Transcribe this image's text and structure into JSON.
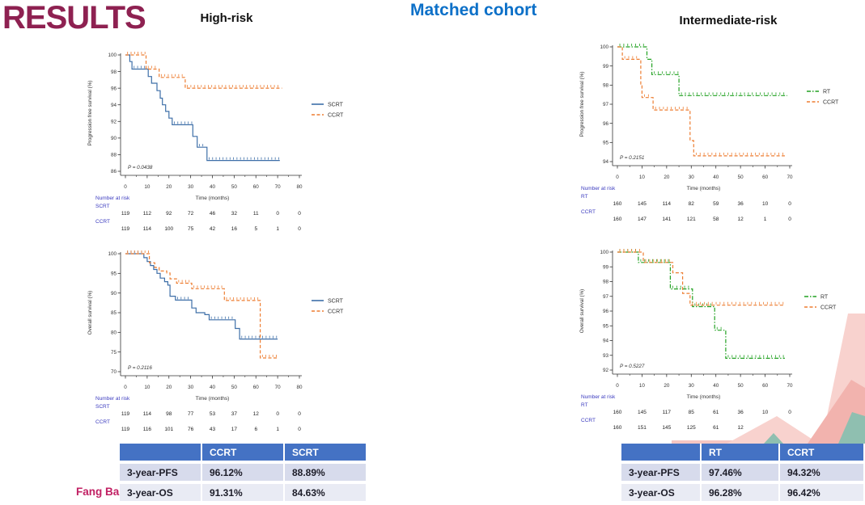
{
  "slide": {
    "title": "RESULTS",
    "subtitle": "Matched cohort",
    "left_heading": "High-risk",
    "right_heading": "Intermediate-risk",
    "footer": "Fang Bai"
  },
  "colors": {
    "title": "#8E2151",
    "subtitle": "#0C70C8",
    "footer": "#C12063",
    "scrt": "#3E6FA8",
    "ccrt": "#ED7D31",
    "rt": "#21A121",
    "risk_label": "#3A3ABF",
    "axis": "#333333",
    "table_header_bg": "#4472C4",
    "table_row1_bg": "#D7DBEC",
    "table_row2_bg": "#E9EBF4",
    "deco_pink_light": "#F8D2CE",
    "deco_pink_mid": "#F2B3AE",
    "deco_teal": "#8FBFB0"
  },
  "chart_data": [
    {
      "type": "line",
      "km_step": true,
      "title": "High-risk progression free survival",
      "ylabel": "Progression free survival (%)",
      "xlabel": "Time (months)",
      "xlim": [
        0,
        80
      ],
      "xticks": [
        0,
        10,
        20,
        30,
        40,
        50,
        60,
        70,
        80
      ],
      "ylim": [
        86,
        100
      ],
      "yticks": [
        86,
        88,
        90,
        92,
        94,
        96,
        98,
        100
      ],
      "pvalue": "P = 0.0438",
      "legend_position": "right",
      "grid": false,
      "series": [
        {
          "name": "SCRT",
          "color_key": "scrt",
          "style": "solid",
          "steps": [
            [
              0,
              100
            ],
            [
              2,
              100
            ],
            [
              2,
              99.2
            ],
            [
              3,
              99.2
            ],
            [
              3,
              98.3
            ],
            [
              10.5,
              98.3
            ],
            [
              10.5,
              97.4
            ],
            [
              12,
              97.4
            ],
            [
              12,
              96.6
            ],
            [
              14.5,
              96.6
            ],
            [
              14.5,
              95.7
            ],
            [
              16,
              95.7
            ],
            [
              16,
              94.8
            ],
            [
              17,
              94.8
            ],
            [
              17,
              94
            ],
            [
              18.5,
              94
            ],
            [
              18.5,
              93.2
            ],
            [
              20,
              93.2
            ],
            [
              20,
              92.4
            ],
            [
              21.5,
              92.4
            ],
            [
              21.5,
              91.6
            ],
            [
              31,
              91.6
            ],
            [
              31,
              90.2
            ],
            [
              33,
              90.2
            ],
            [
              33,
              88.9
            ],
            [
              37.5,
              88.9
            ],
            [
              37.5,
              87.3
            ],
            [
              71,
              87.3
            ]
          ]
        },
        {
          "name": "CCRT",
          "color_key": "ccrt",
          "style": "dashed",
          "steps": [
            [
              0,
              100
            ],
            [
              9.5,
              100
            ],
            [
              9.5,
              98.3
            ],
            [
              15.5,
              98.3
            ],
            [
              15.5,
              97.3
            ],
            [
              27.5,
              97.3
            ],
            [
              27.5,
              96
            ],
            [
              72,
              96
            ]
          ]
        }
      ],
      "risk_table": {
        "label": "Number at risk",
        "rows": [
          {
            "name": "SCRT",
            "values": [
              "119",
              "112",
              "92",
              "72",
              "46",
              "32",
              "11",
              "0",
              "0"
            ]
          },
          {
            "name": "CCRT",
            "values": [
              "119",
              "114",
              "100",
              "75",
              "42",
              "16",
              "5",
              "1",
              "0"
            ]
          }
        ]
      }
    },
    {
      "type": "line",
      "km_step": true,
      "title": "High-risk overall survival",
      "ylabel": "Overall survival (%)",
      "xlabel": "Time (months)",
      "xlim": [
        0,
        80
      ],
      "xticks": [
        0,
        10,
        20,
        30,
        40,
        50,
        60,
        70,
        80
      ],
      "ylim": [
        70,
        100
      ],
      "yticks": [
        70,
        75,
        80,
        85,
        90,
        95,
        100
      ],
      "pvalue": "P = 0.2116",
      "legend_position": "right",
      "grid": false,
      "series": [
        {
          "name": "SCRT",
          "color_key": "scrt",
          "style": "solid",
          "steps": [
            [
              0,
              100
            ],
            [
              8.5,
              100
            ],
            [
              8.5,
              99
            ],
            [
              10,
              99
            ],
            [
              10,
              98
            ],
            [
              11.5,
              98
            ],
            [
              11.5,
              97
            ],
            [
              13,
              97
            ],
            [
              13,
              96
            ],
            [
              14.5,
              96
            ],
            [
              14.5,
              95
            ],
            [
              16,
              95
            ],
            [
              16,
              93.8
            ],
            [
              18,
              93.8
            ],
            [
              18,
              92.9
            ],
            [
              19.5,
              92.9
            ],
            [
              19.5,
              92
            ],
            [
              20.5,
              92
            ],
            [
              20.5,
              89.2
            ],
            [
              23,
              89.2
            ],
            [
              23,
              88.2
            ],
            [
              30.5,
              88.2
            ],
            [
              30.5,
              86.2
            ],
            [
              32.5,
              86.2
            ],
            [
              32.5,
              85
            ],
            [
              36.5,
              85
            ],
            [
              36.5,
              84.5
            ],
            [
              38.5,
              84.5
            ],
            [
              38.5,
              83.2
            ],
            [
              50.5,
              83.2
            ],
            [
              50.5,
              81
            ],
            [
              52.5,
              81
            ],
            [
              52.5,
              78.3
            ],
            [
              70,
              78.3
            ]
          ]
        },
        {
          "name": "CCRT",
          "color_key": "ccrt",
          "style": "dashed",
          "steps": [
            [
              0,
              100
            ],
            [
              11,
              100
            ],
            [
              11,
              97.7
            ],
            [
              13.5,
              97.7
            ],
            [
              13.5,
              96.5
            ],
            [
              15.5,
              96.5
            ],
            [
              15.5,
              95.6
            ],
            [
              19,
              95.6
            ],
            [
              19,
              95.1
            ],
            [
              20.5,
              95.1
            ],
            [
              20.5,
              93.6
            ],
            [
              23.5,
              93.6
            ],
            [
              23.5,
              92.5
            ],
            [
              30.5,
              92.5
            ],
            [
              30.5,
              91.1
            ],
            [
              45.5,
              91.1
            ],
            [
              45.5,
              88.1
            ],
            [
              62,
              88.1
            ],
            [
              62,
              73.5
            ],
            [
              70,
              73.5
            ]
          ]
        }
      ],
      "risk_table": {
        "label": "Number at risk",
        "rows": [
          {
            "name": "SCRT",
            "values": [
              "119",
              "114",
              "98",
              "77",
              "53",
              "37",
              "12",
              "0",
              "0"
            ]
          },
          {
            "name": "CCRT",
            "values": [
              "119",
              "116",
              "101",
              "76",
              "43",
              "17",
              "6",
              "1",
              "0"
            ]
          }
        ]
      }
    },
    {
      "type": "line",
      "km_step": true,
      "title": "Intermediate-risk progression free survival",
      "ylabel": "Progression free survival (%)",
      "xlabel": "Time (months)",
      "xlim": [
        0,
        70
      ],
      "xticks": [
        0,
        10,
        20,
        30,
        40,
        50,
        60,
        70
      ],
      "ylim": [
        94,
        100
      ],
      "yticks": [
        94,
        95,
        96,
        97,
        98,
        99,
        100
      ],
      "pvalue": "P = 0.2151",
      "legend_position": "right",
      "grid": false,
      "series": [
        {
          "name": "RT",
          "color_key": "rt",
          "style": "dashdot",
          "steps": [
            [
              0,
              100
            ],
            [
              12,
              100
            ],
            [
              12,
              99.35
            ],
            [
              14,
              99.35
            ],
            [
              14,
              98.55
            ],
            [
              25,
              98.55
            ],
            [
              25,
              97.45
            ],
            [
              69,
              97.45
            ]
          ]
        },
        {
          "name": "CCRT",
          "color_key": "ccrt",
          "style": "dashed",
          "steps": [
            [
              0,
              100
            ],
            [
              2,
              100
            ],
            [
              2,
              99.35
            ],
            [
              9.5,
              99.35
            ],
            [
              9.5,
              98
            ],
            [
              10,
              98
            ],
            [
              10,
              97.35
            ],
            [
              14.5,
              97.35
            ],
            [
              14.5,
              96.7
            ],
            [
              29.5,
              96.7
            ],
            [
              29.5,
              95.1
            ],
            [
              31,
              95.1
            ],
            [
              31,
              94.3
            ],
            [
              68,
              94.3
            ]
          ]
        }
      ],
      "risk_table": {
        "label": "Number at risk",
        "rows": [
          {
            "name": "RT",
            "values": [
              "160",
              "145",
              "114",
              "82",
              "59",
              "36",
              "10",
              "0"
            ]
          },
          {
            "name": "CCRT",
            "values": [
              "160",
              "147",
              "141",
              "121",
              "58",
              "12",
              "1",
              "0"
            ]
          }
        ]
      }
    },
    {
      "type": "line",
      "km_step": true,
      "title": "Intermediate-risk overall survival",
      "ylabel": "Overall survival (%)",
      "xlabel": "Time (months)",
      "xlim": [
        0,
        70
      ],
      "xticks": [
        0,
        10,
        20,
        30,
        40,
        50,
        60,
        70
      ],
      "ylim": [
        92,
        100
      ],
      "yticks": [
        92,
        93,
        94,
        95,
        96,
        97,
        98,
        99,
        100
      ],
      "pvalue": "P = 0.5227",
      "legend_position": "right",
      "grid": false,
      "series": [
        {
          "name": "RT",
          "color_key": "rt",
          "style": "dashdot",
          "steps": [
            [
              0,
              100
            ],
            [
              8.5,
              100
            ],
            [
              8.5,
              99.3
            ],
            [
              21.5,
              99.3
            ],
            [
              21.5,
              97.5
            ],
            [
              30.5,
              97.5
            ],
            [
              30.5,
              96.3
            ],
            [
              39.5,
              96.3
            ],
            [
              39.5,
              94.7
            ],
            [
              44,
              94.7
            ],
            [
              44,
              92.8
            ],
            [
              68,
              92.8
            ]
          ]
        },
        {
          "name": "CCRT",
          "color_key": "ccrt",
          "style": "dashed",
          "steps": [
            [
              0,
              100
            ],
            [
              10.5,
              100
            ],
            [
              10.5,
              99.3
            ],
            [
              22.5,
              99.3
            ],
            [
              22.5,
              98.6
            ],
            [
              26.5,
              98.6
            ],
            [
              26.5,
              97.2
            ],
            [
              29.5,
              97.2
            ],
            [
              29.5,
              96.4
            ],
            [
              68,
              96.4
            ]
          ]
        }
      ],
      "risk_table": {
        "label": "Number at risk",
        "rows": [
          {
            "name": "RT",
            "values": [
              "160",
              "145",
              "117",
              "85",
              "61",
              "36",
              "10",
              "0"
            ]
          },
          {
            "name": "CCRT",
            "values": [
              "160",
              "151",
              "145",
              "125",
              "61",
              "12",
              "1",
              "0"
            ]
          }
        ]
      }
    }
  ],
  "tables": [
    {
      "header": [
        "",
        "CCRT",
        "SCRT"
      ],
      "rows": [
        [
          "3-year-PFS",
          "96.12%",
          "88.89%"
        ],
        [
          "3-year-OS",
          "91.31%",
          "84.63%"
        ]
      ]
    },
    {
      "header": [
        "",
        "RT",
        "CCRT"
      ],
      "rows": [
        [
          "3-year-PFS",
          "97.46%",
          "94.32%"
        ],
        [
          "3-year-OS",
          "96.28%",
          "96.42%"
        ]
      ]
    }
  ]
}
